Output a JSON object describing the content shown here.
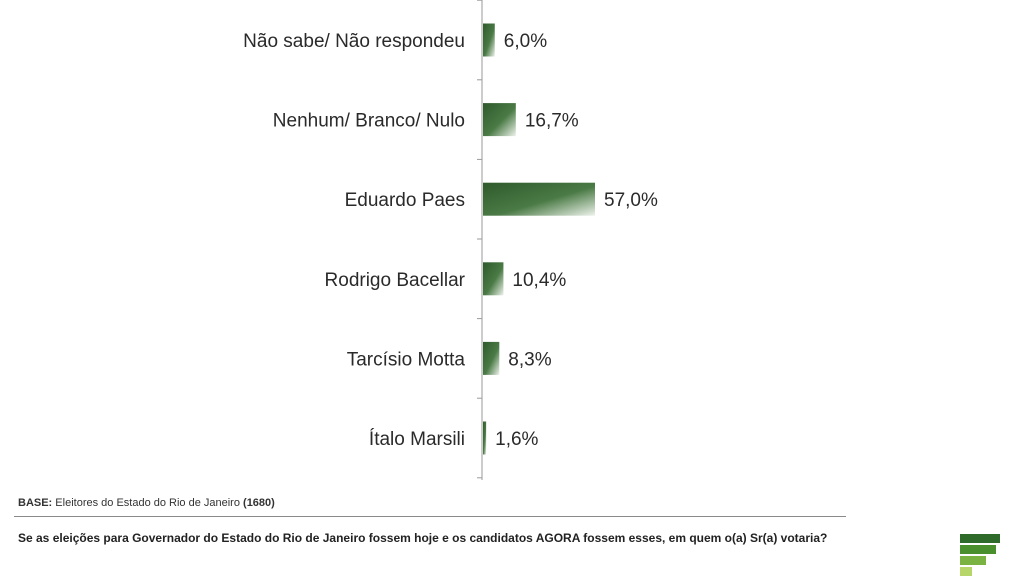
{
  "chart_data": {
    "type": "bar",
    "orientation": "horizontal",
    "categories": [
      "Não sabe/ Não respondeu",
      "Nenhum/ Branco/ Nulo",
      "Eduardo Paes",
      "Rodrigo Bacellar",
      "Tarcísio Motta",
      "Ítalo Marsili"
    ],
    "values": [
      6.0,
      16.7,
      57.0,
      10.4,
      8.3,
      1.6
    ],
    "value_labels": [
      "6,0%",
      "16,7%",
      "57,0%",
      "10,4%",
      "8,3%",
      "1,6%"
    ],
    "bar_color": "#3d6b3a",
    "xlim": [
      0,
      57.0
    ],
    "grid": false,
    "legend": "none"
  },
  "footer": {
    "base_label": "BASE:",
    "base_text": "Eleitores do Estado do Rio de Janeiro",
    "base_count": "(1680)",
    "question": "Se as eleições para Governador do Estado do Rio de Janeiro fossem hoje e os candidatos AGORA fossem esses, em quem o(a) Sr(a) votaria?"
  },
  "logo": {
    "icon": "green-stacked-bars-logo",
    "colors": [
      "#2e6b2a",
      "#4a8f2e",
      "#7bb342",
      "#b6d66a"
    ]
  }
}
